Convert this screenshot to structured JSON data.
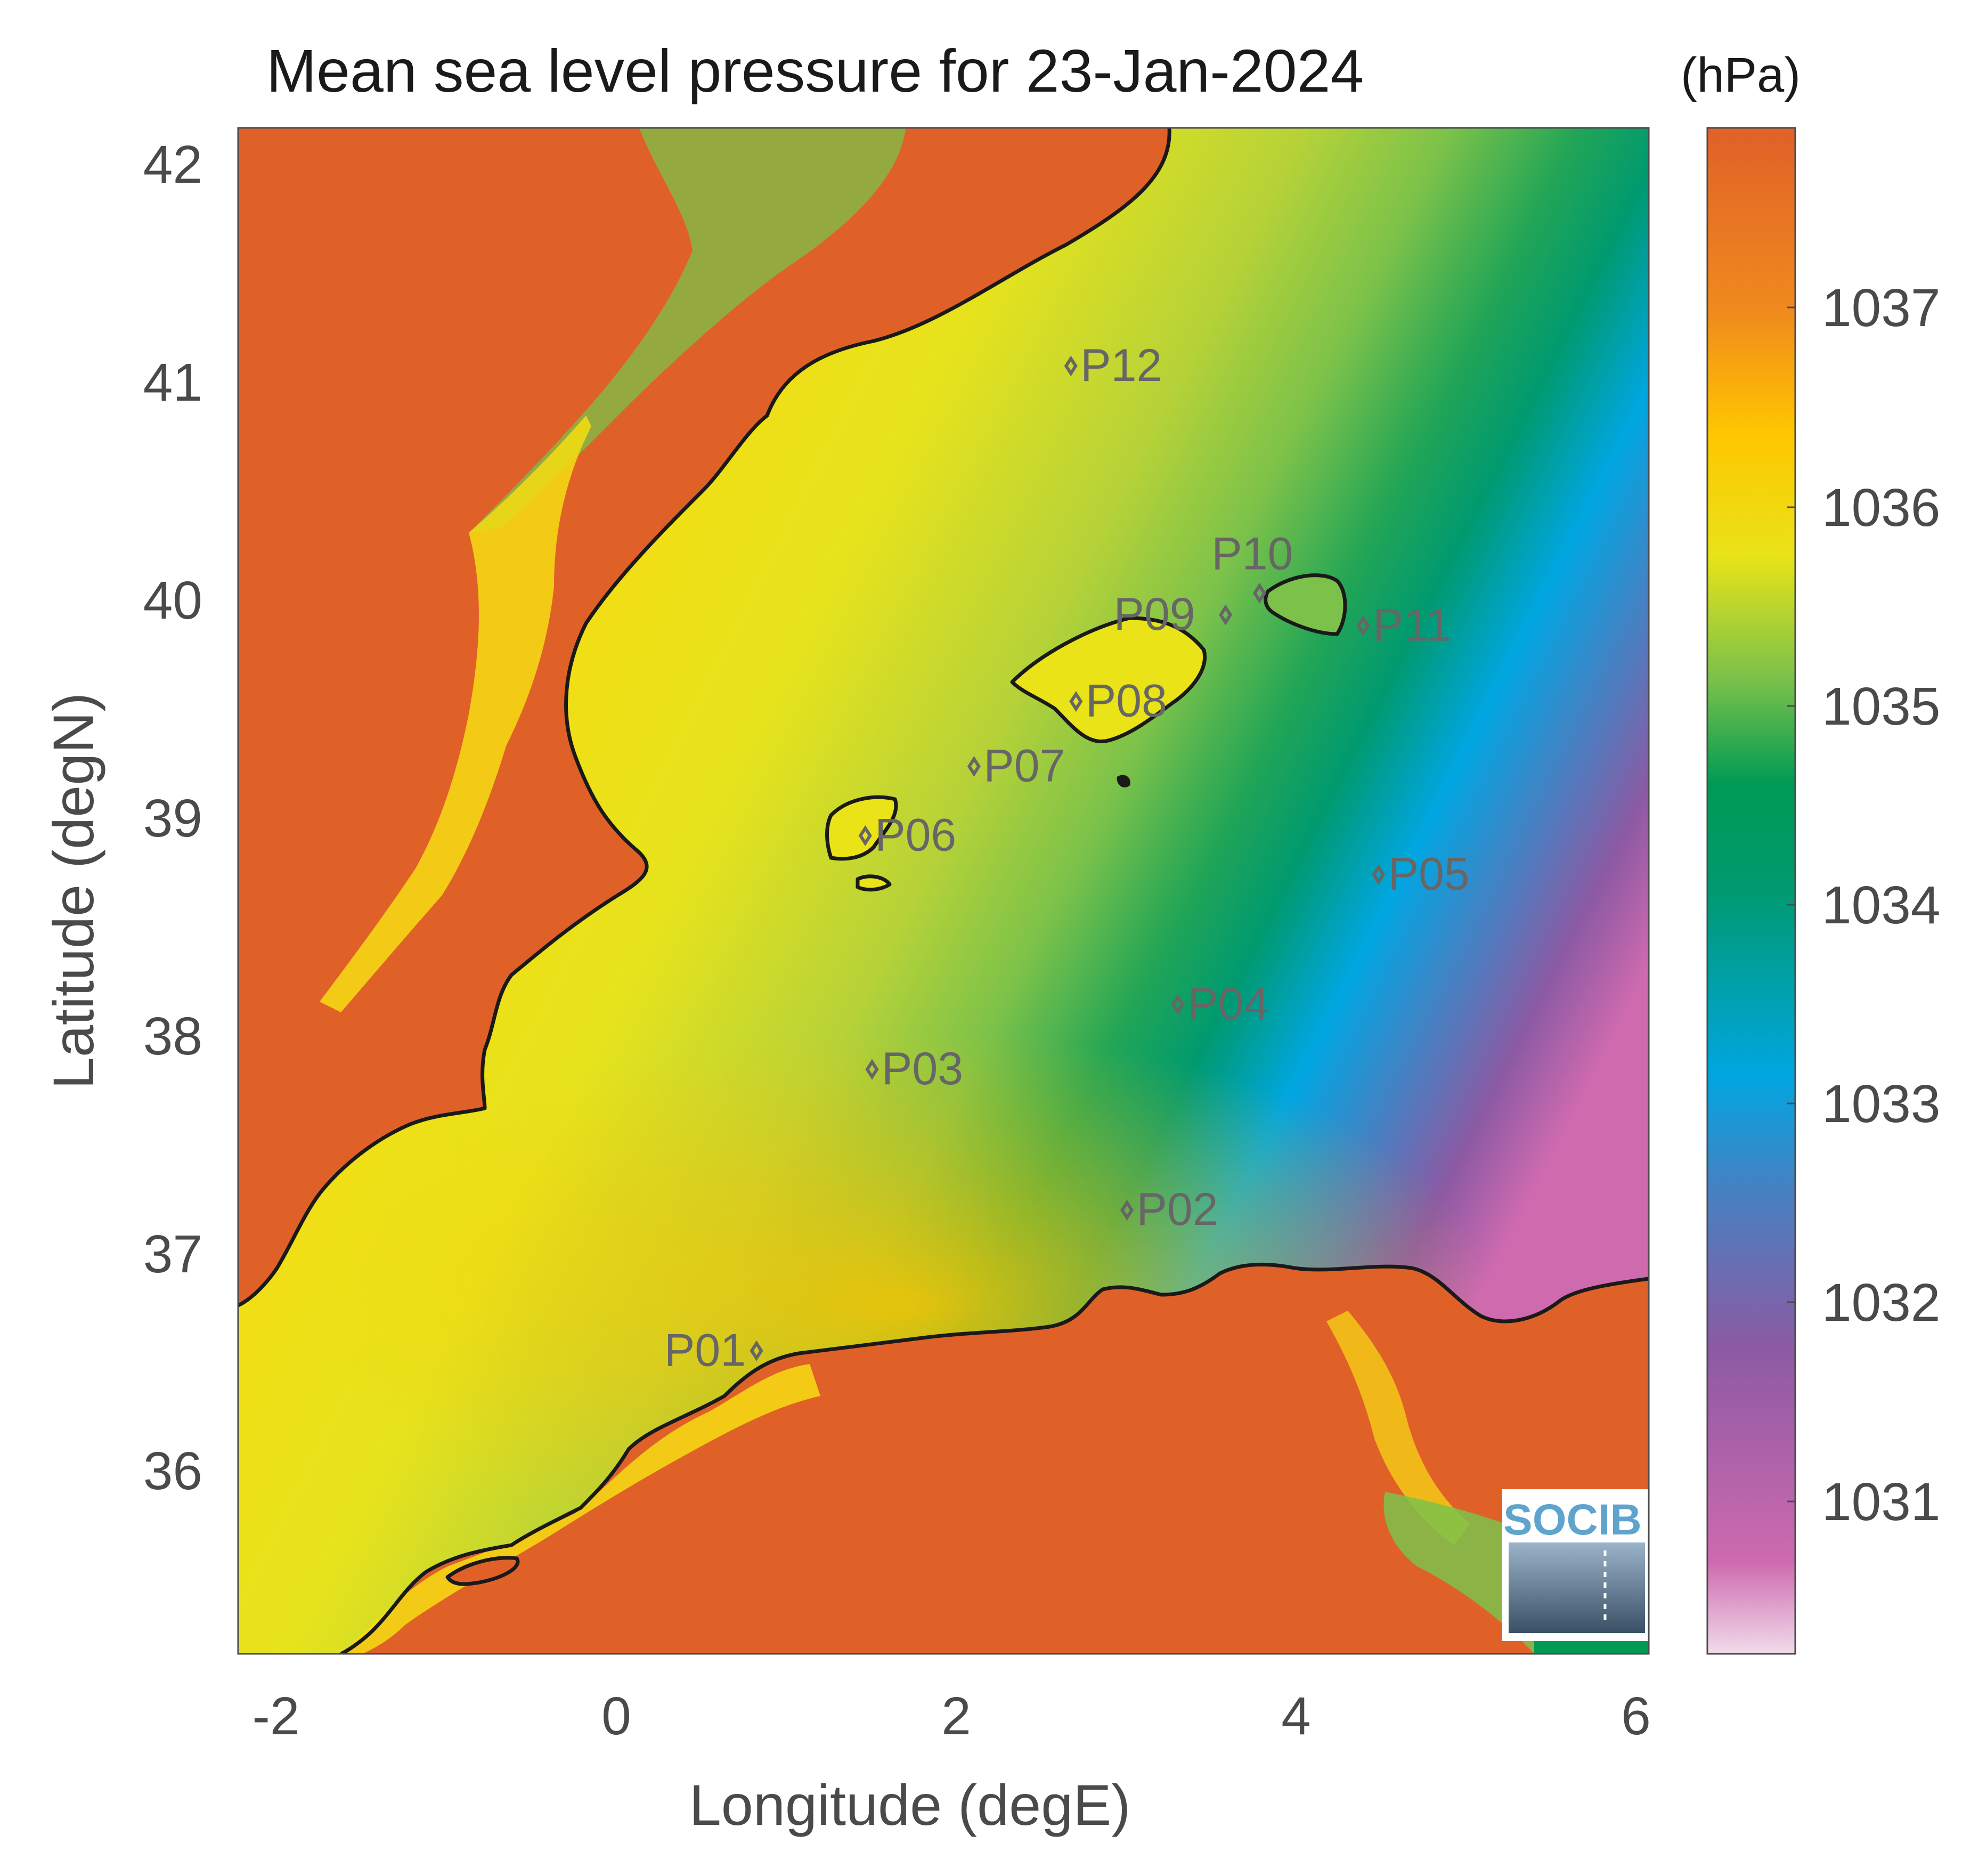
{
  "title": "Mean sea level pressure for 23-Jan-2024",
  "xlabel": "Longitude (degE)",
  "ylabel": "Latitude (degN)",
  "x_ticks": [
    "-2",
    "0",
    "2",
    "4",
    "6"
  ],
  "y_ticks": [
    "36",
    "37",
    "38",
    "39",
    "40",
    "41",
    "42"
  ],
  "colorbar": {
    "units": "(hPa)",
    "ticks": [
      "1031",
      "1032",
      "1033",
      "1034",
      "1035",
      "1036",
      "1037"
    ],
    "range": [
      1030.2,
      1037.9
    ],
    "colormap": [
      "#e6c7dd",
      "#cf6aaf",
      "#8c5aa3",
      "#4a7fc1",
      "#00a6e1",
      "#009b8a",
      "#009a55",
      "#7cc24a",
      "#e9e318",
      "#ffc600",
      "#f08a1d",
      "#e06128"
    ]
  },
  "logo": "SOCIB",
  "chart_data": {
    "type": "heatmap",
    "title": "Mean sea level pressure for 23-Jan-2024",
    "xlabel": "Longitude (degE)",
    "ylabel": "Latitude (degN)",
    "xlim": [
      -2.2,
      6.1
    ],
    "ylim": [
      35.1,
      42.15
    ],
    "value_range_hPa": [
      1030.2,
      1037.9
    ],
    "stations": [
      {
        "name": "P01",
        "lon": 0.85,
        "lat": 36.5
      },
      {
        "name": "P02",
        "lon": 3.03,
        "lat": 37.15
      },
      {
        "name": "P03",
        "lon": 1.53,
        "lat": 37.8
      },
      {
        "name": "P04",
        "lon": 3.33,
        "lat": 38.1
      },
      {
        "name": "P05",
        "lon": 4.51,
        "lat": 38.7
      },
      {
        "name": "P06",
        "lon": 1.49,
        "lat": 38.88
      },
      {
        "name": "P07",
        "lon": 2.13,
        "lat": 39.2
      },
      {
        "name": "P08",
        "lon": 2.73,
        "lat": 39.5
      },
      {
        "name": "P09",
        "lon": 3.61,
        "lat": 39.9
      },
      {
        "name": "P10",
        "lon": 3.81,
        "lat": 40.0
      },
      {
        "name": "P11",
        "lon": 4.42,
        "lat": 39.85
      },
      {
        "name": "P12",
        "lon": 2.7,
        "lat": 41.05
      }
    ]
  }
}
